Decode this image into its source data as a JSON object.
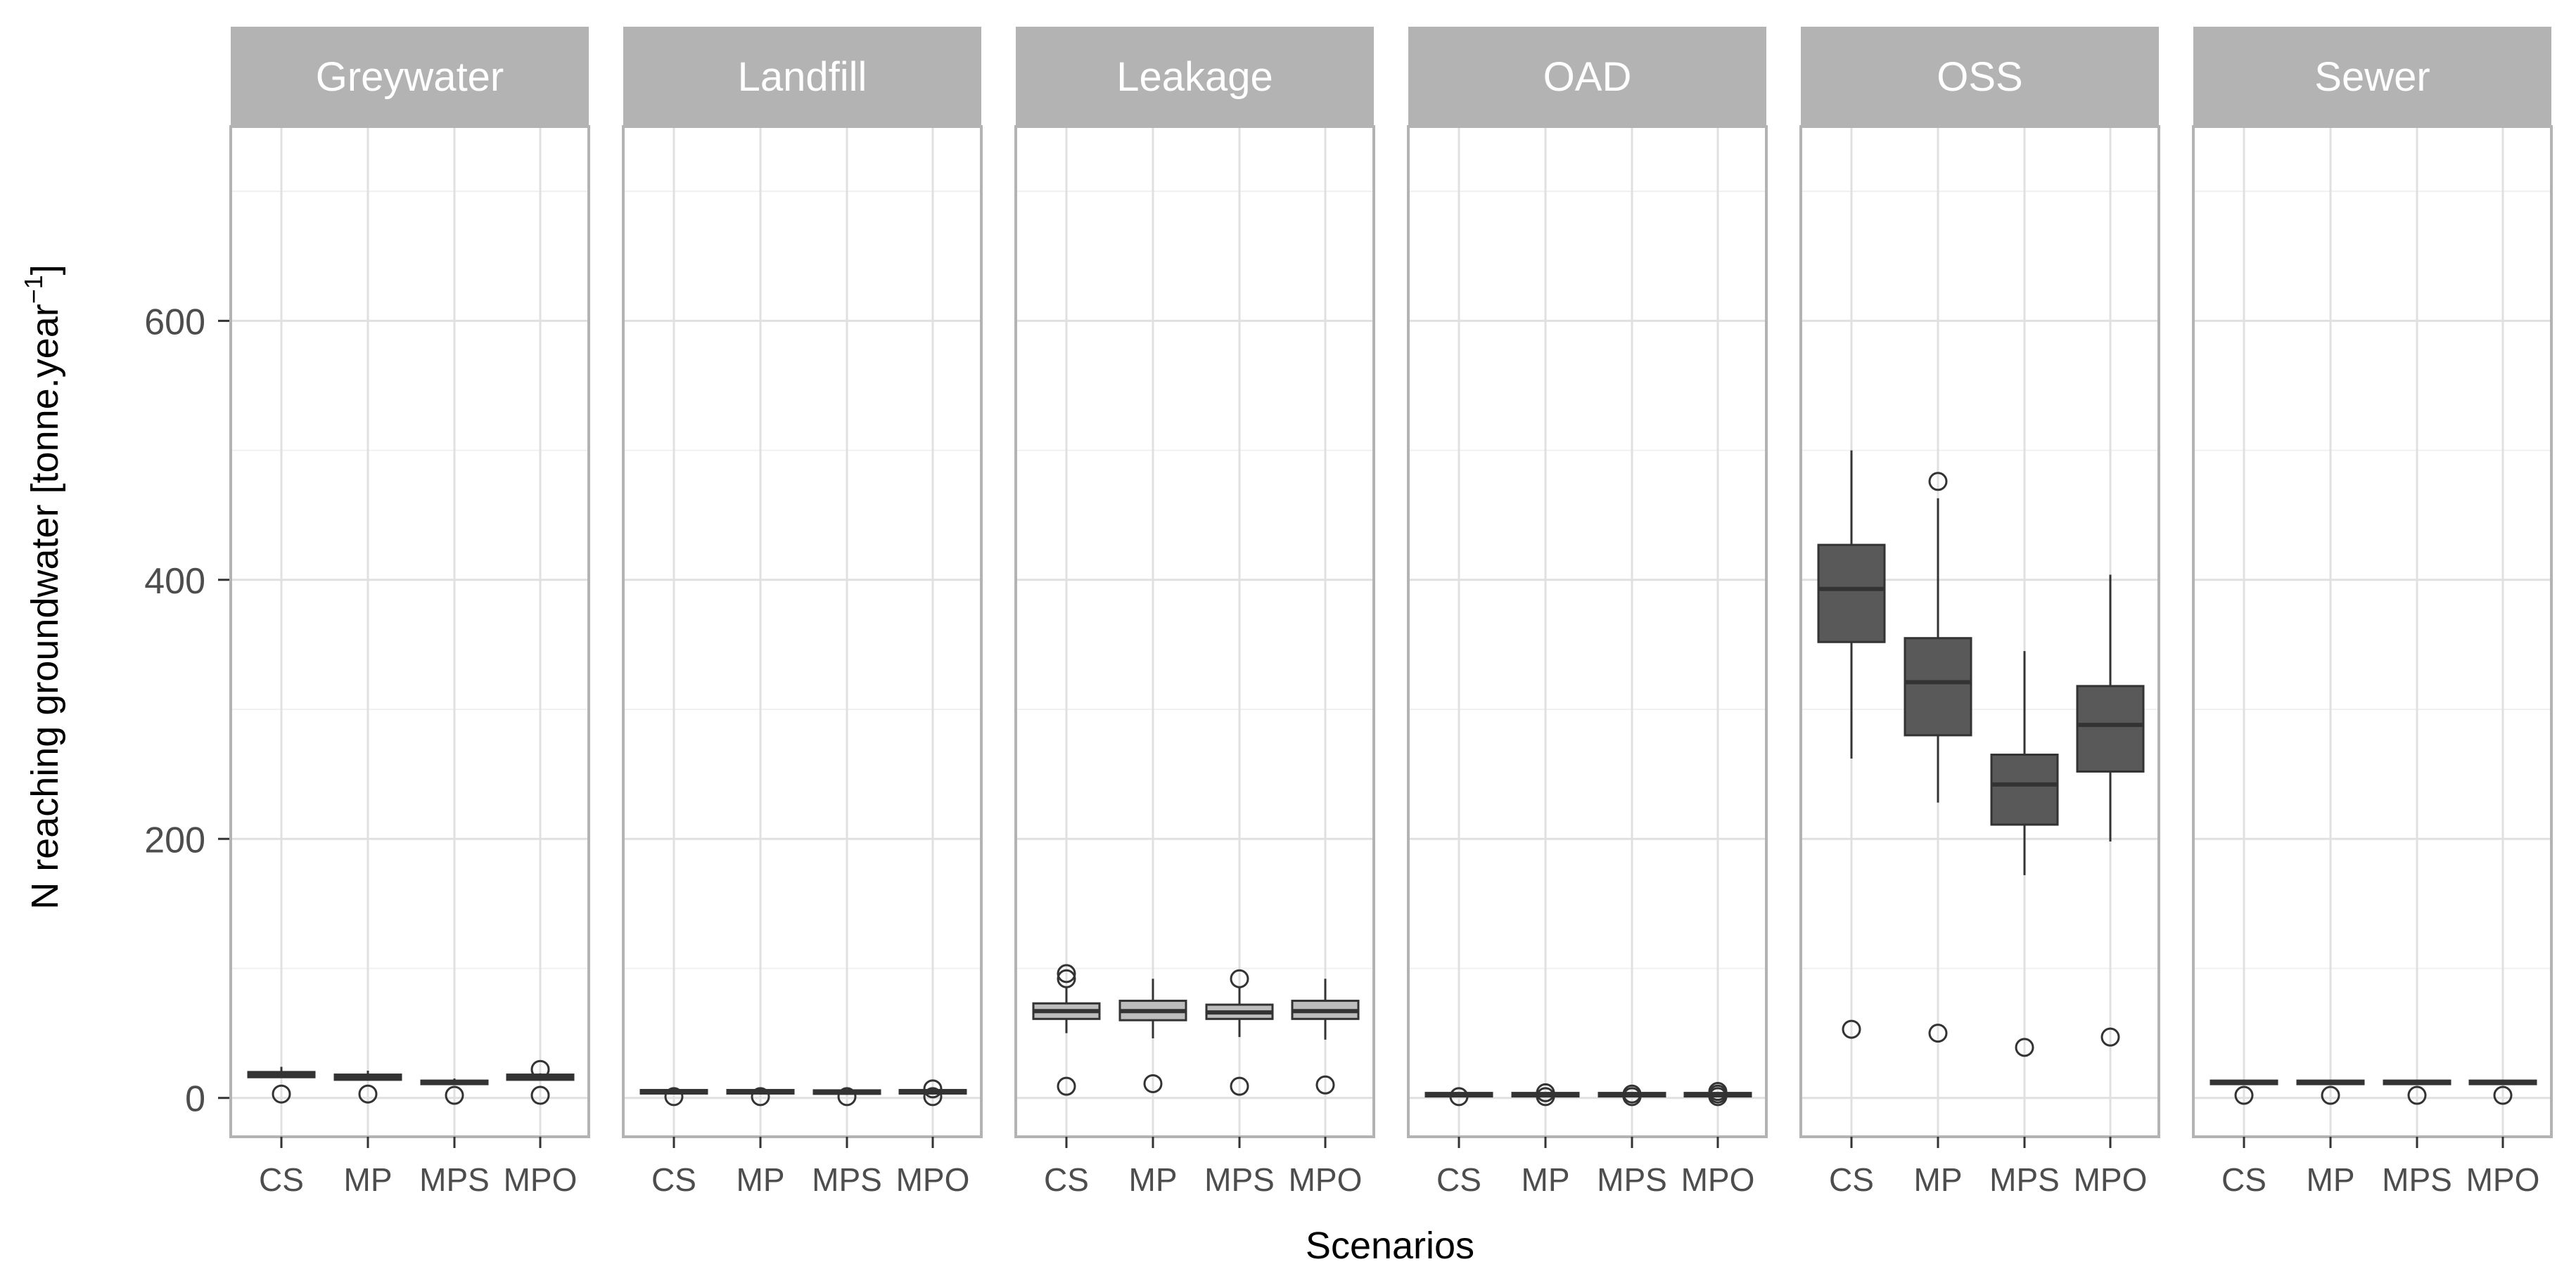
{
  "chart_data": {
    "type": "boxplot",
    "title": "",
    "xlabel": "Scenarios",
    "ylabel": "N reaching groundwater [tonne.year",
    "ylabel_sup": "−1",
    "ylabel_close": "]",
    "ylim": [
      -30,
      750
    ],
    "yticks": [
      0,
      200,
      400,
      600
    ],
    "grid": true,
    "legend": "none",
    "categories": [
      "CS",
      "MP",
      "MPS",
      "MPO"
    ],
    "colors": {
      "panel_border": "#b3b3b3",
      "strip_bg": "#b3b3b3",
      "strip_text": "#ffffff",
      "grid_major": "#e0e0e0",
      "grid_minor": "#f0f0f0",
      "box_dark": "#595959",
      "box_light": "#bdbdbd",
      "box_stroke": "#333333",
      "tick_text": "#4d4d4d",
      "axis_title": "#000000"
    },
    "panels": [
      {
        "name": "Greywater",
        "fill": "dark",
        "boxes": [
          {
            "category": "CS",
            "min": 16,
            "q1": 16,
            "median": 18,
            "q3": 20,
            "max": 24,
            "outliers": [
              3
            ]
          },
          {
            "category": "MP",
            "min": 14,
            "q1": 14,
            "median": 16,
            "q3": 18,
            "max": 21,
            "outliers": [
              3
            ]
          },
          {
            "category": "MPS",
            "min": 11,
            "q1": 11,
            "median": 12,
            "q3": 13,
            "max": 15,
            "outliers": [
              2
            ]
          },
          {
            "category": "MPO",
            "min": 14,
            "q1": 14,
            "median": 16,
            "q3": 18,
            "max": 19,
            "outliers": [
              22,
              2
            ]
          }
        ]
      },
      {
        "name": "Landfill",
        "fill": "dark",
        "boxes": [
          {
            "category": "CS",
            "min": 3,
            "q1": 4,
            "median": 5,
            "q3": 5.5,
            "max": 6,
            "outliers": [
              1
            ]
          },
          {
            "category": "MP",
            "min": 3,
            "q1": 4,
            "median": 5,
            "q3": 5.5,
            "max": 6,
            "outliers": [
              1
            ]
          },
          {
            "category": "MPS",
            "min": 3,
            "q1": 4,
            "median": 4.5,
            "q3": 5,
            "max": 6,
            "outliers": [
              1
            ]
          },
          {
            "category": "MPO",
            "min": 3,
            "q1": 4,
            "median": 5,
            "q3": 5.5,
            "max": 6,
            "outliers": [
              7,
              1
            ]
          }
        ]
      },
      {
        "name": "Leakage",
        "fill": "light",
        "boxes": [
          {
            "category": "CS",
            "min": 50,
            "q1": 61,
            "median": 67,
            "q3": 73,
            "max": 85,
            "outliers": [
              96,
              92,
              9
            ]
          },
          {
            "category": "MP",
            "min": 46,
            "q1": 60,
            "median": 67,
            "q3": 75,
            "max": 92,
            "outliers": [
              11
            ]
          },
          {
            "category": "MPS",
            "min": 47,
            "q1": 61,
            "median": 66,
            "q3": 72,
            "max": 85,
            "outliers": [
              92,
              9
            ]
          },
          {
            "category": "MPO",
            "min": 45,
            "q1": 61,
            "median": 67,
            "q3": 75,
            "max": 92,
            "outliers": [
              10
            ]
          }
        ]
      },
      {
        "name": "OAD",
        "fill": "dark",
        "boxes": [
          {
            "category": "CS",
            "min": 1,
            "q1": 2,
            "median": 2.5,
            "q3": 3,
            "max": 4,
            "outliers": [
              1
            ]
          },
          {
            "category": "MP",
            "min": 1,
            "q1": 2,
            "median": 2.5,
            "q3": 3,
            "max": 4,
            "outliers": [
              4,
              1
            ]
          },
          {
            "category": "MPS",
            "min": 1,
            "q1": 2,
            "median": 2.5,
            "q3": 3,
            "max": 4,
            "outliers": [
              3,
              1
            ]
          },
          {
            "category": "MPO",
            "min": 1,
            "q1": 2,
            "median": 2.5,
            "q3": 3,
            "max": 4,
            "outliers": [
              5,
              3,
              1
            ]
          }
        ]
      },
      {
        "name": "OSS",
        "fill": "dark",
        "boxes": [
          {
            "category": "CS",
            "min": 262,
            "q1": 352,
            "median": 393,
            "q3": 427,
            "max": 500,
            "outliers": [
              53
            ]
          },
          {
            "category": "MP",
            "min": 228,
            "q1": 280,
            "median": 321,
            "q3": 355,
            "max": 463,
            "outliers": [
              476,
              50
            ]
          },
          {
            "category": "MPS",
            "min": 172,
            "q1": 211,
            "median": 242,
            "q3": 265,
            "max": 345,
            "outliers": [
              39
            ]
          },
          {
            "category": "MPO",
            "min": 198,
            "q1": 252,
            "median": 288,
            "q3": 318,
            "max": 404,
            "outliers": [
              47
            ]
          }
        ]
      },
      {
        "name": "Sewer",
        "fill": "dark",
        "boxes": [
          {
            "category": "CS",
            "min": 10,
            "q1": 11,
            "median": 12,
            "q3": 13,
            "max": 14,
            "outliers": [
              2
            ]
          },
          {
            "category": "MP",
            "min": 10,
            "q1": 11,
            "median": 12,
            "q3": 13,
            "max": 14,
            "outliers": [
              2
            ]
          },
          {
            "category": "MPS",
            "min": 10,
            "q1": 11,
            "median": 12,
            "q3": 13,
            "max": 14,
            "outliers": [
              2
            ]
          },
          {
            "category": "MPO",
            "min": 10,
            "q1": 11,
            "median": 12,
            "q3": 13,
            "max": 14,
            "outliers": [
              2
            ]
          }
        ]
      }
    ]
  }
}
